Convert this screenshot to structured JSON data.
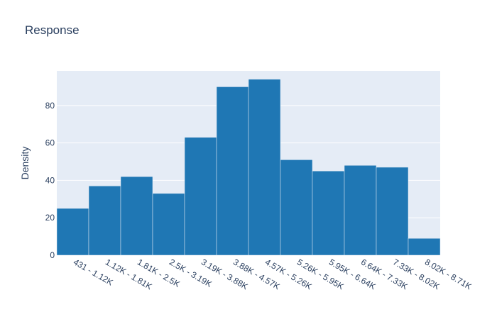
{
  "chart_data": {
    "type": "bar",
    "title": "Response",
    "xlabel": "",
    "ylabel": "Density",
    "categories": [
      "431 - 1.12K",
      "1.12K - 1.81K",
      "1.81K - 2.5K",
      "2.5K - 3.19K",
      "3.19K - 3.88K",
      "3.88K - 4.57K",
      "4.57K - 5.26K",
      "5.26K - 5.95K",
      "5.95K - 6.64K",
      "6.64K - 7.33K",
      "7.33K - 8.02K",
      "8.02K - 8.71K"
    ],
    "values": [
      25,
      37,
      42,
      33,
      63,
      90,
      94,
      51,
      45,
      48,
      47,
      9
    ],
    "ylim": [
      0,
      98.5
    ],
    "yticks": [
      0,
      20,
      40,
      60,
      80
    ],
    "grid": true,
    "bar_color": "#1f77b4",
    "plot_bg": "#e5ecf6",
    "text_color": "#2a3f5f"
  }
}
